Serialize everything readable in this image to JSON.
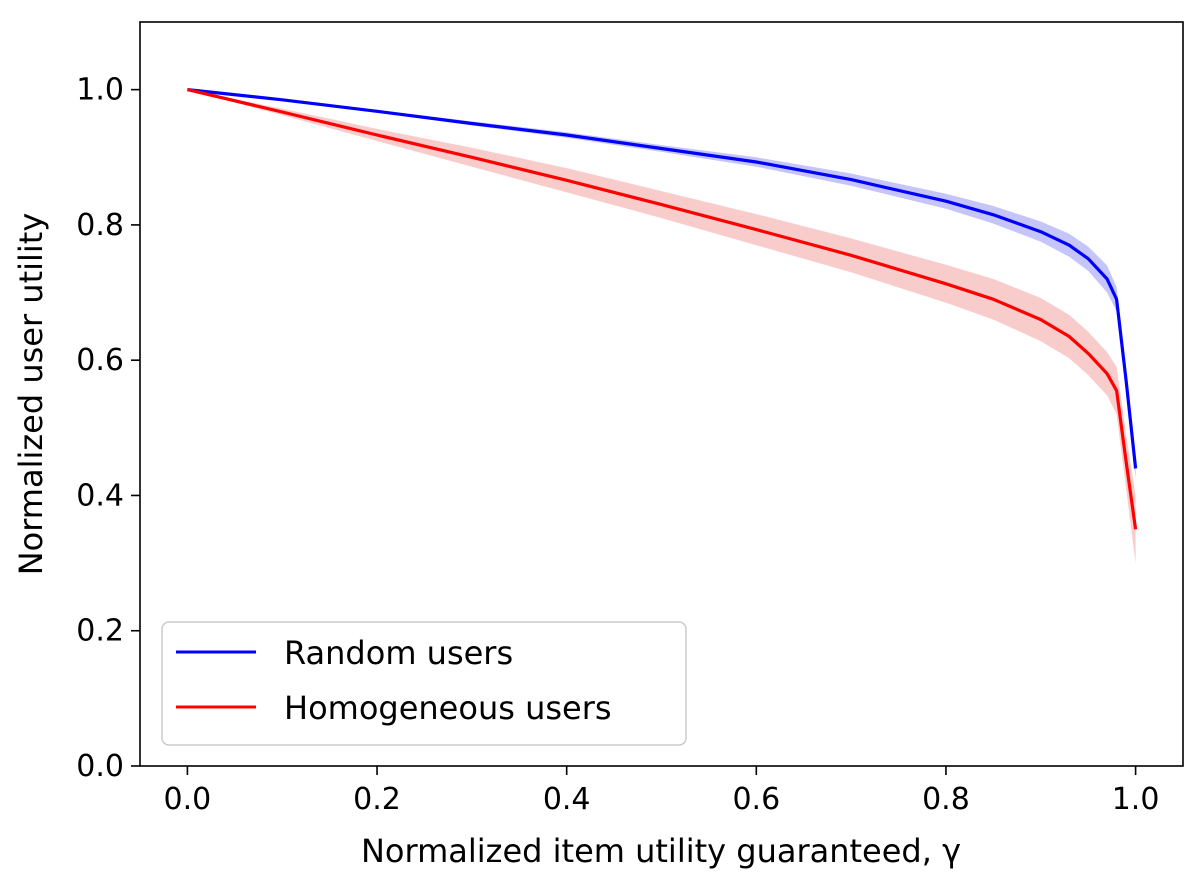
{
  "chart_data": {
    "type": "line",
    "xlabel": "Normalized item utility guaranteed, γ",
    "ylabel": "Normalized user utility",
    "xlim": [
      -0.05,
      1.05
    ],
    "ylim": [
      0.0,
      1.1
    ],
    "x_ticks": [
      "0.0",
      "0.2",
      "0.4",
      "0.6",
      "0.8",
      "1.0"
    ],
    "y_ticks": [
      "0.0",
      "0.2",
      "0.4",
      "0.6",
      "0.8",
      "1.0"
    ],
    "grid": false,
    "legend_position": "lower-left",
    "series": [
      {
        "name": "Random users",
        "color": "#0000ff",
        "band_color": "#6f6ff2",
        "x": [
          0.0,
          0.1,
          0.2,
          0.3,
          0.4,
          0.5,
          0.6,
          0.7,
          0.8,
          0.85,
          0.9,
          0.93,
          0.95,
          0.97,
          0.98,
          0.99,
          1.0
        ],
        "values": [
          1.0,
          0.985,
          0.968,
          0.95,
          0.933,
          0.913,
          0.893,
          0.867,
          0.835,
          0.815,
          0.79,
          0.77,
          0.75,
          0.72,
          0.69,
          0.57,
          0.44
        ],
        "lower": [
          1.0,
          0.984,
          0.966,
          0.947,
          0.929,
          0.908,
          0.886,
          0.858,
          0.824,
          0.802,
          0.775,
          0.753,
          0.732,
          0.7,
          0.672,
          0.555,
          0.425
        ],
        "upper": [
          1.0,
          0.986,
          0.97,
          0.953,
          0.937,
          0.918,
          0.9,
          0.876,
          0.846,
          0.828,
          0.805,
          0.787,
          0.768,
          0.74,
          0.708,
          0.585,
          0.455
        ]
      },
      {
        "name": "Homogeneous users",
        "color": "#ff0000",
        "band_color": "#f08080",
        "x": [
          0.0,
          0.1,
          0.2,
          0.3,
          0.4,
          0.5,
          0.6,
          0.7,
          0.8,
          0.85,
          0.9,
          0.93,
          0.95,
          0.97,
          0.98,
          0.99,
          1.0
        ],
        "values": [
          1.0,
          0.967,
          0.933,
          0.9,
          0.866,
          0.83,
          0.793,
          0.755,
          0.713,
          0.69,
          0.66,
          0.635,
          0.61,
          0.58,
          0.555,
          0.45,
          0.35
        ],
        "lower": [
          1.0,
          0.962,
          0.924,
          0.886,
          0.848,
          0.81,
          0.77,
          0.73,
          0.685,
          0.66,
          0.628,
          0.603,
          0.578,
          0.548,
          0.52,
          0.41,
          0.3
        ],
        "upper": [
          1.0,
          0.972,
          0.942,
          0.914,
          0.884,
          0.85,
          0.816,
          0.78,
          0.741,
          0.72,
          0.692,
          0.667,
          0.642,
          0.612,
          0.59,
          0.49,
          0.4
        ]
      }
    ]
  }
}
